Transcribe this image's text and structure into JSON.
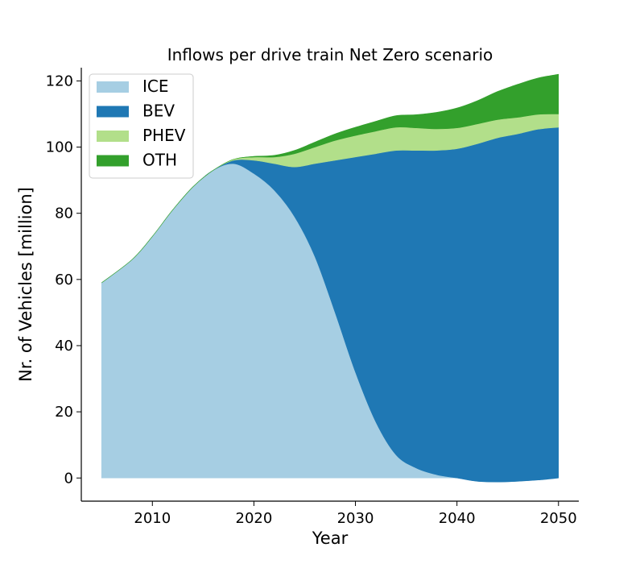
{
  "chart_data": {
    "type": "area",
    "stacked": true,
    "title": "Inflows per drive train Net Zero scenario",
    "xlabel": "Year",
    "ylabel": "Nr. of Vehicles [million]",
    "xlim": [
      2003,
      2052
    ],
    "ylim": [
      -7,
      124
    ],
    "xticks": [
      2010,
      2020,
      2030,
      2040,
      2050
    ],
    "yticks": [
      0,
      20,
      40,
      60,
      80,
      100,
      120
    ],
    "legend_position": "top-left",
    "x": [
      2005,
      2008,
      2010,
      2012,
      2014,
      2016,
      2018,
      2020,
      2022,
      2024,
      2026,
      2028,
      2030,
      2032,
      2034,
      2036,
      2038,
      2040,
      2042,
      2044,
      2046,
      2048,
      2050
    ],
    "series": [
      {
        "name": "ICE",
        "color": "#a6cee3",
        "values": [
          59,
          66,
          73,
          81,
          88,
          93,
          95,
          92,
          87,
          79,
          67,
          50,
          32,
          17,
          7,
          3,
          1,
          0,
          -1,
          -1.2,
          -1,
          -0.6,
          0
        ]
      },
      {
        "name": "BEV",
        "color": "#1f78b4",
        "values": [
          0,
          0,
          0,
          0,
          0,
          0,
          1,
          4,
          8,
          15,
          28,
          46,
          65,
          81,
          92,
          96,
          98,
          99.5,
          102,
          104,
          105,
          106,
          106
        ]
      },
      {
        "name": "PHEV",
        "color": "#b2df8a",
        "values": [
          0,
          0,
          0,
          0,
          0,
          0,
          0.3,
          1,
          2,
          4,
          5,
          6,
          6.5,
          6.8,
          7,
          6.8,
          6.5,
          6.3,
          6,
          5.5,
          5,
          4.5,
          4
        ]
      },
      {
        "name": "OTH",
        "color": "#33a02c",
        "values": [
          0,
          0,
          0,
          0,
          0,
          0,
          0,
          0.2,
          0.5,
          1,
          1.5,
          2,
          2.5,
          3,
          3.5,
          4,
          5,
          6,
          7,
          8.5,
          10,
          11,
          12
        ]
      }
    ]
  }
}
